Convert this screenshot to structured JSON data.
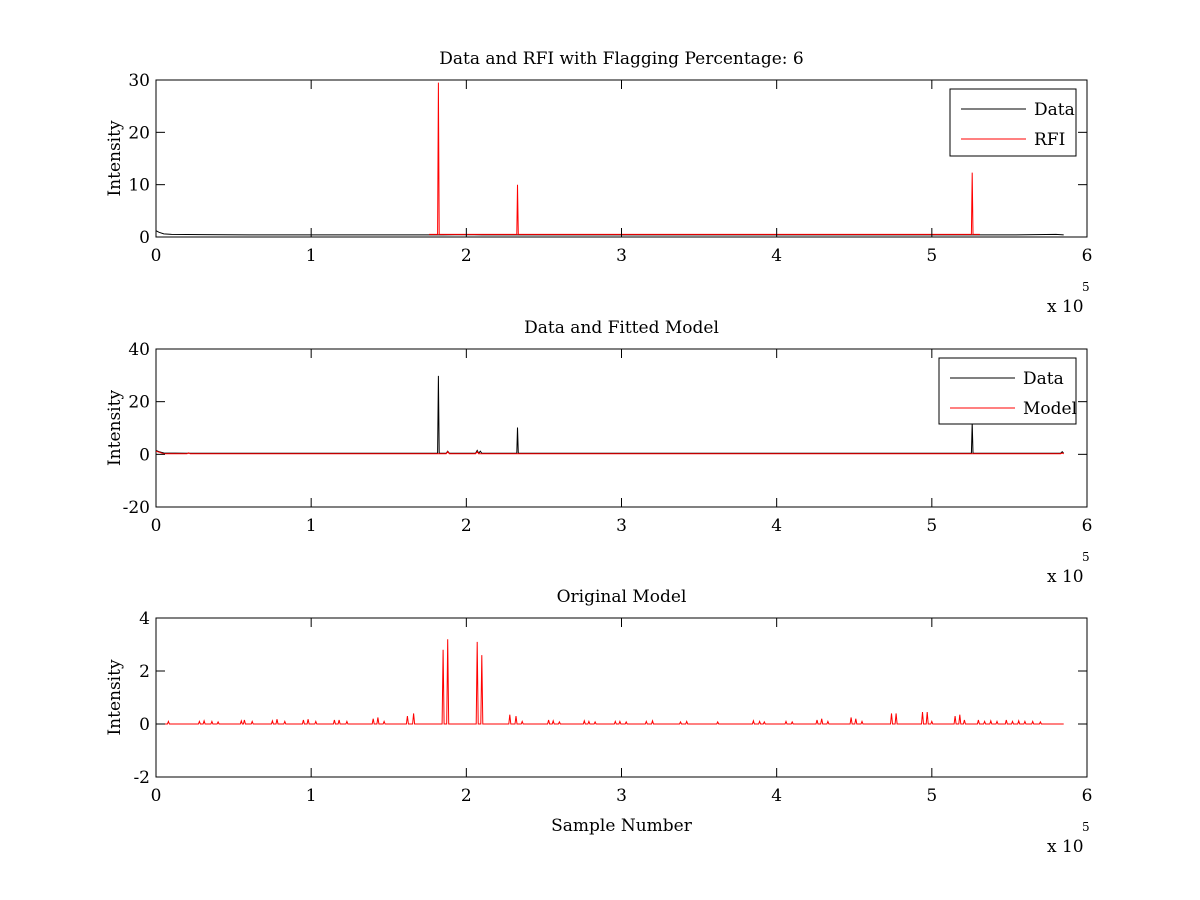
{
  "axis_multiplier": {
    "prefix": "x 10",
    "exponent": "5"
  },
  "colors": {
    "data": "#000000",
    "rfi": "#ff0000",
    "model": "#ff0000",
    "axes": "#000000"
  },
  "chart_data": [
    {
      "type": "line",
      "title": "Data and RFI with Flagging Percentage: 6",
      "xlabel": "",
      "ylabel": "Intensity",
      "xlim": [
        0,
        600000
      ],
      "ylim": [
        0,
        30
      ],
      "xticks": [
        0,
        100000,
        200000,
        300000,
        400000,
        500000,
        600000
      ],
      "xtick_labels": [
        "0",
        "1",
        "2",
        "3",
        "4",
        "5",
        "6"
      ],
      "yticks": [
        0,
        10,
        20,
        30
      ],
      "ytick_labels": [
        "0",
        "10",
        "20",
        "30"
      ],
      "x_scale_label": "x 10^5",
      "legend_position": "top-right",
      "grid": false,
      "series": [
        {
          "name": "Data",
          "color": "#000000",
          "x": [
            0,
            2000,
            5000,
            10000,
            30000,
            60000,
            100000,
            150000,
            180000,
            185000,
            200000,
            210000,
            250000,
            300000,
            350000,
            400000,
            450000,
            500000,
            550000,
            580000,
            585000
          ],
          "y": [
            1.2,
            0.9,
            0.6,
            0.5,
            0.45,
            0.4,
            0.4,
            0.4,
            0.4,
            0.4,
            0.45,
            0.4,
            0.4,
            0.4,
            0.4,
            0.4,
            0.4,
            0.4,
            0.4,
            0.5,
            0.4
          ]
        },
        {
          "name": "RFI",
          "color": "#ff0000",
          "x": [
            176000,
            181500,
            182000,
            182500,
            187000,
            228000,
            232500,
            233000,
            233500,
            238000,
            510000,
            525500,
            526000,
            526500,
            531000
          ],
          "y": [
            0.5,
            0.5,
            29.5,
            0.5,
            0.5,
            0.5,
            0.5,
            10.0,
            0.5,
            0.5,
            0.5,
            0.5,
            12.3,
            0.5,
            0.5
          ]
        }
      ]
    },
    {
      "type": "line",
      "title": "Data and Fitted Model",
      "xlabel": "",
      "ylabel": "Intensity",
      "xlim": [
        0,
        600000
      ],
      "ylim": [
        -20,
        40
      ],
      "xticks": [
        0,
        100000,
        200000,
        300000,
        400000,
        500000,
        600000
      ],
      "xtick_labels": [
        "0",
        "1",
        "2",
        "3",
        "4",
        "5",
        "6"
      ],
      "yticks": [
        -20,
        0,
        20,
        40
      ],
      "ytick_labels": [
        "-20",
        "0",
        "20",
        "40"
      ],
      "x_scale_label": "x 10^5",
      "legend_position": "top-right",
      "grid": false,
      "series": [
        {
          "name": "Data",
          "color": "#000000",
          "x": [
            0,
            2000,
            5000,
            20000,
            181500,
            182000,
            182500,
            187000,
            188000,
            189000,
            206000,
            207000,
            208000,
            209000,
            210000,
            232500,
            233000,
            233500,
            525500,
            526000,
            526500,
            583000,
            584000,
            585000
          ],
          "y": [
            1.5,
            1.0,
            0.5,
            0.4,
            0.4,
            29.8,
            0.4,
            0.4,
            1.2,
            0.4,
            0.4,
            1.5,
            0.4,
            1.2,
            0.4,
            0.4,
            10.2,
            0.4,
            0.4,
            12.0,
            0.4,
            0.4,
            1.0,
            0.4
          ]
        },
        {
          "name": "Model",
          "color": "#ff0000",
          "x": [
            0,
            2000,
            5000,
            20000,
            21000,
            22000,
            187000,
            188000,
            189000,
            206000,
            207000,
            208000,
            583000,
            584000,
            585000
          ],
          "y": [
            1.2,
            0.8,
            0.2,
            0.2,
            0.6,
            0.2,
            0.2,
            1.0,
            0.2,
            0.2,
            1.0,
            0.2,
            0.2,
            0.5,
            0.2
          ]
        }
      ]
    },
    {
      "type": "line",
      "title": "Original Model",
      "xlabel": "Sample Number",
      "ylabel": "Intensity",
      "xlim": [
        0,
        600000
      ],
      "ylim": [
        -2,
        4
      ],
      "xticks": [
        0,
        100000,
        200000,
        300000,
        400000,
        500000,
        600000
      ],
      "xtick_labels": [
        "0",
        "1",
        "2",
        "3",
        "4",
        "5",
        "6"
      ],
      "yticks": [
        -2,
        0,
        2,
        4
      ],
      "ytick_labels": [
        "-2",
        "0",
        "2",
        "4"
      ],
      "x_scale_label": "x 10^5",
      "legend_position": "none",
      "grid": false,
      "series": [
        {
          "name": "",
          "color": "#ff0000",
          "baseline": 0,
          "spikes_x": [
            8000,
            28000,
            31000,
            36000,
            40000,
            55000,
            57000,
            62000,
            75000,
            78000,
            83000,
            95000,
            98000,
            103000,
            115000,
            118000,
            123000,
            140000,
            143000,
            147000,
            162000,
            166000,
            185000,
            188000,
            207000,
            210000,
            228000,
            232000,
            236000,
            253000,
            256000,
            260000,
            276000,
            279000,
            283000,
            296000,
            299000,
            303000,
            316000,
            320000,
            338000,
            342000,
            362000,
            385000,
            389000,
            392000,
            406000,
            410000,
            426000,
            429000,
            433000,
            448000,
            451000,
            455000,
            474000,
            477000,
            494000,
            497000,
            500000,
            515000,
            518000,
            521000,
            530000,
            534000,
            538000,
            542000,
            548000,
            552000,
            556000,
            560000,
            565000,
            570000
          ],
          "spikes_y": [
            0.1,
            0.1,
            0.12,
            0.1,
            0.08,
            0.12,
            0.15,
            0.1,
            0.12,
            0.18,
            0.1,
            0.15,
            0.18,
            0.1,
            0.15,
            0.15,
            0.1,
            0.2,
            0.25,
            0.1,
            0.3,
            0.4,
            2.8,
            3.2,
            3.1,
            2.6,
            0.35,
            0.3,
            0.1,
            0.15,
            0.12,
            0.08,
            0.12,
            0.1,
            0.08,
            0.1,
            0.1,
            0.08,
            0.1,
            0.12,
            0.08,
            0.1,
            0.08,
            0.12,
            0.1,
            0.08,
            0.1,
            0.08,
            0.15,
            0.2,
            0.1,
            0.25,
            0.2,
            0.1,
            0.4,
            0.4,
            0.45,
            0.45,
            0.1,
            0.3,
            0.35,
            0.15,
            0.15,
            0.1,
            0.12,
            0.1,
            0.15,
            0.1,
            0.12,
            0.1,
            0.1,
            0.08
          ]
        }
      ]
    }
  ]
}
